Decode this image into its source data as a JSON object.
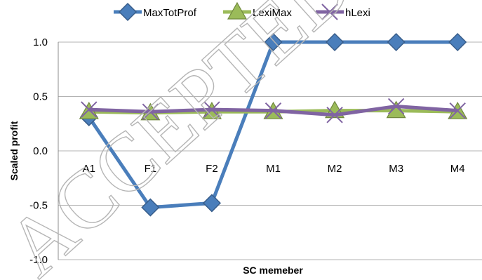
{
  "chart_data": {
    "type": "line",
    "categories": [
      "A1",
      "F1",
      "F2",
      "M1",
      "M2",
      "M3",
      "M4"
    ],
    "series": [
      {
        "name": "MaxTotProf",
        "color": "#4a7ebb",
        "marker": "diamond",
        "values": [
          0.31,
          -0.52,
          -0.48,
          1.0,
          1.0,
          1.0,
          1.0
        ]
      },
      {
        "name": "LexiMax",
        "color": "#9bbb59",
        "marker": "triangle",
        "values": [
          0.36,
          0.35,
          0.36,
          0.36,
          0.37,
          0.37,
          0.36
        ]
      },
      {
        "name": "hLexi",
        "color": "#8064a2",
        "marker": "x",
        "values": [
          0.38,
          0.36,
          0.38,
          0.37,
          0.33,
          0.41,
          0.37
        ]
      }
    ],
    "xlabel": "SC memeber",
    "ylabel": "Scaled profit",
    "ylim": [
      -1.0,
      1.0
    ],
    "yticks": [
      "-1.0",
      "-0.5",
      "0.0",
      "0.5",
      "1.0"
    ],
    "grid": true,
    "legend_position": "top"
  },
  "watermark": {
    "text": "ACCEPTED MANUSCRIPT",
    "color": "#b5b5b5"
  }
}
